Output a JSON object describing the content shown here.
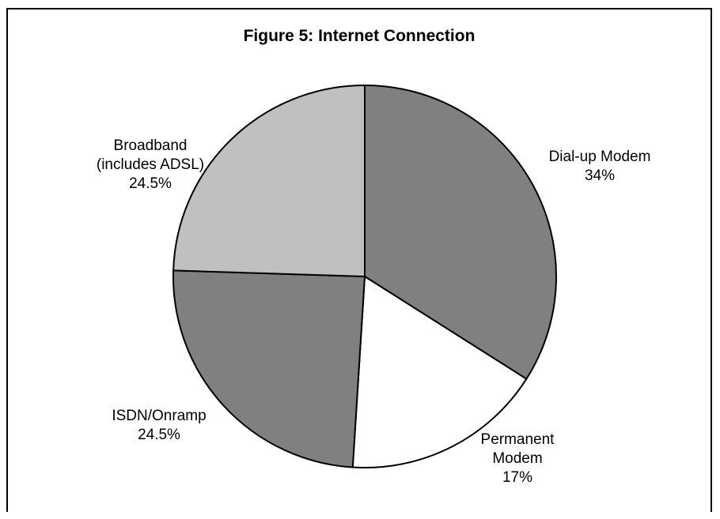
{
  "chart_data": {
    "type": "pie",
    "title": "Figure 5:  Internet Connection",
    "slices": [
      {
        "category": "Dial-up Modem",
        "label_lines": [
          "Dial-up Modem",
          "34%"
        ],
        "value": 34,
        "color": "#808080"
      },
      {
        "category": "Permanent Modem",
        "label_lines": [
          "Permanent",
          "Modem",
          "17%"
        ],
        "value": 17,
        "color": "#ffffff"
      },
      {
        "category": "ISDN/Onramp",
        "label_lines": [
          "ISDN/Onramp",
          "24.5%"
        ],
        "value": 24.5,
        "color": "#808080"
      },
      {
        "category": "Broadband (includes ADSL)",
        "label_lines": [
          "Broadband",
          "(includes ADSL)",
          "24.5%"
        ],
        "value": 24.5,
        "color": "#c0c0c0"
      }
    ],
    "start_angle": "12 o'clock",
    "direction": "clockwise",
    "legend": "none"
  }
}
